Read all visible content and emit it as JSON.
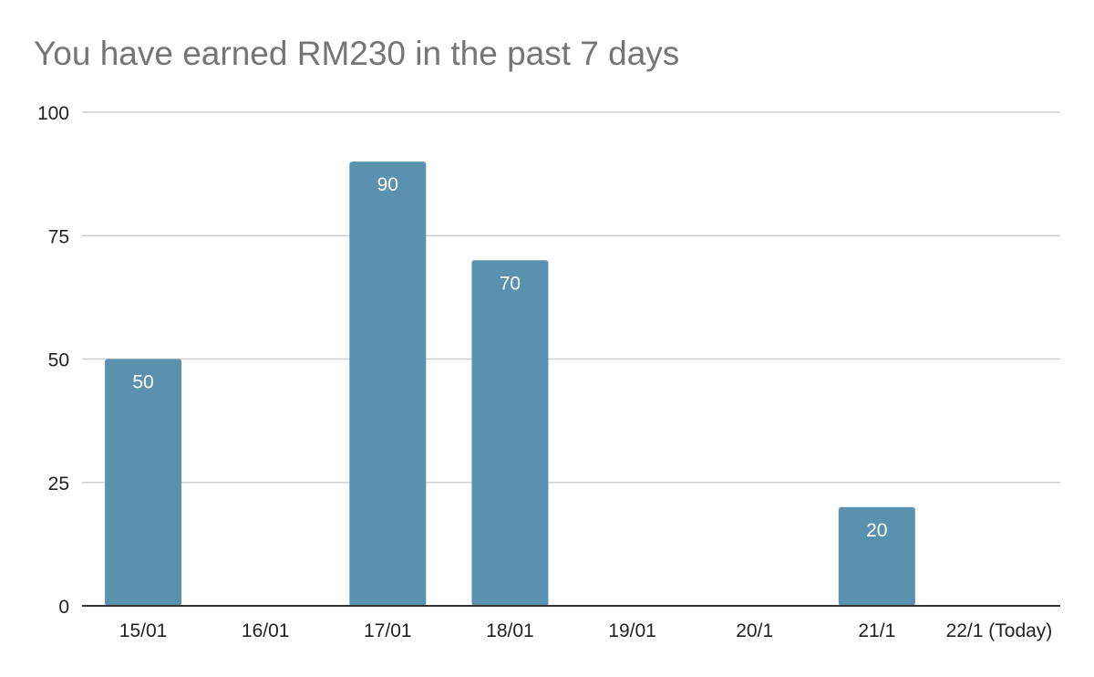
{
  "chart_data": {
    "type": "bar",
    "title": "You have earned RM230 in the past 7 days",
    "xlabel": "",
    "ylabel": "",
    "categories": [
      "15/01",
      "16/01",
      "17/01",
      "18/01",
      "19/01",
      "20/1",
      "21/1",
      "22/1 (Today)"
    ],
    "values": [
      50,
      0,
      90,
      70,
      0,
      0,
      20,
      0
    ],
    "data_labels": [
      "50",
      "",
      "90",
      "70",
      "",
      "",
      "20",
      ""
    ],
    "ylim": [
      0,
      100
    ],
    "yticks": [
      0,
      25,
      50,
      75,
      100
    ],
    "grid": true,
    "legend": "none",
    "bar_color": "#5991ae"
  }
}
